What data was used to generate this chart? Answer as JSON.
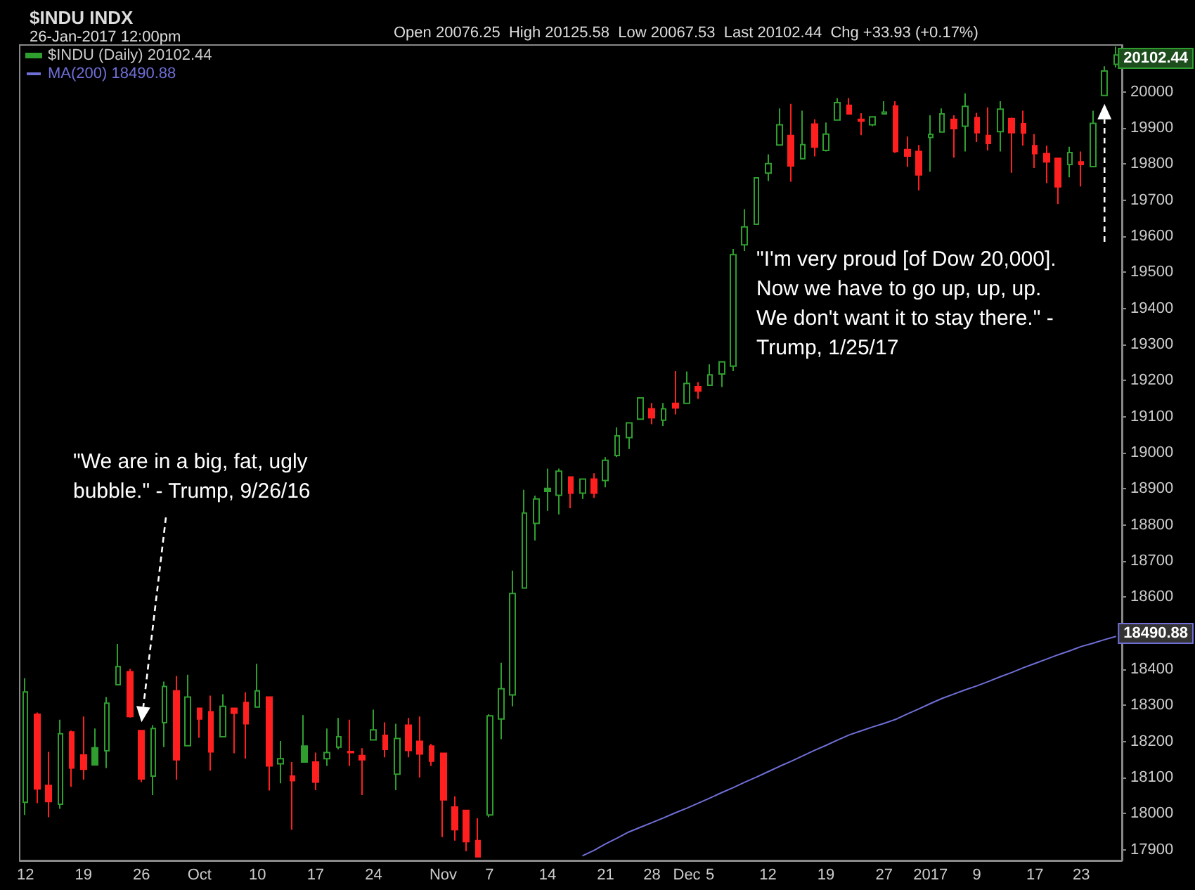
{
  "chart_data": {
    "type": "candlestick",
    "title": "$INDU INDX",
    "subtitle": "26-Jan-2017 12:00pm",
    "annotations": [
      "Open 20076.25  High 20125.58  Low 20067.53  Last 20102.44  Chg +33.93 (+0.17%)",
      "\"We are in a big, fat, ugly bubble.\" - Trump, 9/26/16",
      "\"I'm very proud [of Dow 20,000]. Now we have to go up, up, up. We don't want it to stay there.\" - Trump, 1/25/17",
      "20102.44",
      "18490.88"
    ],
    "categories": [
      "12",
      null,
      null,
      null,
      null,
      "19",
      null,
      null,
      null,
      null,
      "26",
      null,
      null,
      null,
      null,
      "Oct",
      null,
      null,
      null,
      null,
      "10",
      null,
      null,
      null,
      null,
      "17",
      null,
      null,
      null,
      null,
      "24",
      null,
      null,
      null,
      null,
      null,
      "Nov",
      null,
      null,
      null,
      "7",
      null,
      null,
      null,
      null,
      "14",
      null,
      null,
      null,
      null,
      "21",
      null,
      null,
      null,
      "28",
      null,
      null,
      "Dec",
      null,
      "5",
      null,
      null,
      null,
      null,
      "12",
      null,
      null,
      null,
      null,
      "19",
      null,
      null,
      null,
      null,
      "27",
      null,
      null,
      null,
      "2017",
      null,
      null,
      null,
      "9",
      null,
      null,
      null,
      null,
      "17",
      null,
      null,
      null,
      "23",
      null,
      null,
      null
    ],
    "series": [
      {
        "name": "$INDU (Daily) 20102.44",
        "color": "#2f9e2f",
        "colors": [
          "#2f9e2f",
          "#ff1f1f",
          "#ff1f1f",
          "#2f9e2f",
          "#ff1f1f",
          "#ff1f1f",
          "#2f9e2f",
          "#2f9e2f",
          "#2f9e2f",
          "#ff1f1f",
          "#ff1f1f",
          "#2f9e2f",
          "#2f9e2f",
          "#ff1f1f",
          "#2f9e2f",
          "#ff1f1f",
          "#ff1f1f",
          "#2f9e2f",
          "#ff1f1f",
          "#ff1f1f",
          "#2f9e2f",
          "#ff1f1f",
          "#2f9e2f",
          "#ff1f1f",
          "#2f9e2f",
          "#ff1f1f",
          "#2f9e2f",
          "#2f9e2f",
          "#ff1f1f",
          "#ff1f1f",
          "#2f9e2f",
          "#ff1f1f",
          "#2f9e2f",
          "#ff1f1f",
          "#ff1f1f",
          "#ff1f1f",
          "#ff1f1f",
          "#ff1f1f",
          "#ff1f1f",
          "#ff1f1f",
          "#2f9e2f",
          "#2f9e2f",
          "#2f9e2f",
          "#2f9e2f",
          "#2f9e2f",
          "#2f9e2f",
          "#2f9e2f",
          "#ff1f1f",
          "#2f9e2f",
          "#ff1f1f",
          "#2f9e2f",
          "#2f9e2f",
          "#2f9e2f",
          "#2f9e2f",
          "#ff1f1f",
          "#2f9e2f",
          "#ff1f1f",
          "#2f9e2f",
          "#ff1f1f",
          "#2f9e2f",
          "#2f9e2f",
          "#2f9e2f",
          "#2f9e2f",
          "#2f9e2f",
          "#2f9e2f",
          "#2f9e2f",
          "#ff1f1f",
          "#2f9e2f",
          "#ff1f1f",
          "#2f9e2f",
          "#2f9e2f",
          "#ff1f1f",
          "#ff1f1f",
          "#2f9e2f",
          "#2f9e2f",
          "#ff1f1f",
          "#ff1f1f",
          "#ff1f1f",
          "#2f9e2f",
          "#2f9e2f",
          "#ff1f1f",
          "#2f9e2f",
          "#ff1f1f",
          "#ff1f1f",
          "#2f9e2f",
          "#ff1f1f",
          "#ff1f1f",
          "#ff1f1f",
          "#ff1f1f",
          "#ff1f1f",
          "#2f9e2f",
          "#ff1f1f",
          "#2f9e2f",
          "#2f9e2f",
          "#2f9e2f"
        ],
        "ohlc": [
          [
            18031,
            18375,
            17996,
            18337
          ],
          [
            18275,
            18280,
            18029,
            18068
          ],
          [
            18078,
            18171,
            17990,
            18033
          ],
          [
            18026,
            18260,
            18013,
            18221
          ],
          [
            18226,
            18230,
            18074,
            18126
          ],
          [
            18162,
            18269,
            18094,
            18123
          ],
          [
            18182,
            18236,
            18135,
            18135
          ],
          [
            18174,
            18323,
            18126,
            18306
          ],
          [
            18357,
            18470,
            18357,
            18407
          ],
          [
            18393,
            18401,
            18266,
            18269
          ],
          [
            18230,
            18230,
            18087,
            18096
          ],
          [
            18104,
            18245,
            18051,
            18236
          ],
          [
            18252,
            18366,
            18184,
            18352
          ],
          [
            18340,
            18381,
            18094,
            18149
          ],
          [
            18188,
            18385,
            18188,
            18323
          ],
          [
            18292,
            18292,
            18210,
            18262
          ],
          [
            18282,
            18327,
            18119,
            18171
          ],
          [
            18213,
            18331,
            18213,
            18297
          ],
          [
            18292,
            18292,
            18167,
            18278
          ],
          [
            18308,
            18336,
            18152,
            18249
          ],
          [
            18295,
            18415,
            18295,
            18340
          ],
          [
            18323,
            18323,
            18064,
            18132
          ],
          [
            18138,
            18201,
            18084,
            18152
          ],
          [
            18104,
            18143,
            17955,
            18091
          ],
          [
            18187,
            18273,
            18143,
            18143
          ],
          [
            18143,
            18169,
            18065,
            18087
          ],
          [
            18152,
            18236,
            18132,
            18169
          ],
          [
            18184,
            18265,
            18178,
            18213
          ],
          [
            18172,
            18260,
            18132,
            18169
          ],
          [
            18161,
            18181,
            18051,
            18149
          ],
          [
            18204,
            18288,
            18204,
            18232
          ],
          [
            18217,
            18253,
            18156,
            18178
          ],
          [
            18109,
            18249,
            18065,
            18208
          ],
          [
            18245,
            18265,
            18156,
            18175
          ],
          [
            18200,
            18269,
            18100,
            18165
          ],
          [
            18187,
            18193,
            18132,
            18145
          ],
          [
            18167,
            18167,
            17935,
            18038
          ],
          [
            18018,
            18048,
            17925,
            17955
          ],
          [
            18009,
            18009,
            17896,
            17922
          ],
          [
            17925,
            17987,
            17880,
            17880
          ],
          [
            17996,
            18275,
            17990,
            18271
          ],
          [
            18262,
            18418,
            18206,
            18346
          ],
          [
            18329,
            18673,
            18297,
            18610
          ],
          [
            18625,
            18897,
            18625,
            18833
          ],
          [
            18804,
            18881,
            18757,
            18872
          ],
          [
            18901,
            18956,
            18839,
            18893
          ],
          [
            18882,
            18956,
            18829,
            18949
          ],
          [
            18933,
            18933,
            18846,
            18888
          ],
          [
            18888,
            18927,
            18872,
            18927
          ],
          [
            18927,
            18943,
            18875,
            18888
          ],
          [
            18923,
            18988,
            18904,
            18979
          ],
          [
            18992,
            19070,
            18988,
            19047
          ],
          [
            19042,
            19083,
            19010,
            19083
          ],
          [
            19093,
            19153,
            19093,
            19152
          ],
          [
            19122,
            19138,
            19079,
            19097
          ],
          [
            19090,
            19138,
            19074,
            19122
          ],
          [
            19137,
            19226,
            19106,
            19124
          ],
          [
            19137,
            19225,
            19137,
            19192
          ],
          [
            19183,
            19196,
            19149,
            19171
          ],
          [
            19187,
            19245,
            19186,
            19216
          ],
          [
            19218,
            19252,
            19182,
            19252
          ],
          [
            19240,
            19565,
            19226,
            19549
          ],
          [
            19576,
            19675,
            19559,
            19626
          ],
          [
            19633,
            19762,
            19633,
            19762
          ],
          [
            19775,
            19827,
            19753,
            19801
          ],
          [
            19853,
            19954,
            19853,
            19909
          ],
          [
            19879,
            19967,
            19751,
            19795
          ],
          [
            19815,
            19948,
            19815,
            19854
          ],
          [
            19911,
            19924,
            19821,
            19847
          ],
          [
            19838,
            19915,
            19835,
            19883
          ],
          [
            19922,
            19983,
            19922,
            19970
          ],
          [
            19963,
            19983,
            19939,
            19939
          ],
          [
            19924,
            19941,
            19880,
            19919
          ],
          [
            19909,
            19931,
            19905,
            19931
          ],
          [
            19939,
            19974,
            19939,
            19944
          ],
          [
            19961,
            19974,
            19831,
            19835
          ],
          [
            19840,
            19876,
            19792,
            19822
          ],
          [
            19835,
            19853,
            19727,
            19770
          ],
          [
            19874,
            19935,
            19779,
            19882
          ],
          [
            19889,
            19954,
            19889,
            19939
          ],
          [
            19924,
            19935,
            19818,
            19898
          ],
          [
            19905,
            19996,
            19835,
            19960
          ],
          [
            19929,
            19942,
            19861,
            19887
          ],
          [
            19879,
            19957,
            19838,
            19857
          ],
          [
            19890,
            19974,
            19835,
            19952
          ],
          [
            19926,
            19929,
            19776,
            19887
          ],
          [
            19912,
            19948,
            19851,
            19886
          ],
          [
            19851,
            19883,
            19789,
            19829
          ],
          [
            19829,
            19851,
            19747,
            19806
          ],
          [
            19816,
            19816,
            19689,
            19737
          ],
          [
            19799,
            19848,
            19763,
            19832
          ],
          [
            19806,
            19835,
            19738,
            19799
          ],
          [
            19793,
            19948,
            19793,
            19913
          ],
          [
            19990,
            20071,
            19990,
            20058
          ],
          [
            20076.25,
            20125.58,
            20067.53,
            20102.44
          ]
        ]
      },
      {
        "name": "MA(200) 18490.88",
        "type": "line",
        "color": "#6f6fd8",
        "values": [
          null,
          null,
          null,
          null,
          null,
          null,
          null,
          null,
          null,
          null,
          null,
          null,
          null,
          null,
          null,
          null,
          null,
          null,
          null,
          null,
          null,
          null,
          null,
          null,
          null,
          null,
          null,
          null,
          null,
          null,
          null,
          null,
          null,
          null,
          null,
          null,
          null,
          null,
          null,
          null,
          null,
          null,
          null,
          null,
          null,
          null,
          null,
          null,
          17883,
          17898,
          17916,
          17932,
          17949,
          17962,
          17975,
          17988,
          18002,
          18015,
          18029,
          18043,
          18058,
          18072,
          18087,
          18101,
          18116,
          18131,
          18145,
          18160,
          18175,
          18189,
          18204,
          18218,
          18229,
          18240,
          18250,
          18261,
          18276,
          18290,
          18305,
          18319,
          18331,
          18343,
          18354,
          18366,
          18379,
          18391,
          18404,
          18416,
          18428,
          18440,
          18451,
          18463,
          18472,
          18482,
          18491
        ]
      }
    ],
    "ylim": [
      17870,
      20130
    ],
    "yticks": [
      17900,
      18000,
      18100,
      18200,
      18300,
      18400,
      18600,
      18700,
      18800,
      18900,
      19000,
      19100,
      19200,
      19300,
      19400,
      19500,
      19600,
      19700,
      19800,
      19900,
      20000
    ],
    "grid": false,
    "legend": "top left",
    "marker": "none"
  }
}
